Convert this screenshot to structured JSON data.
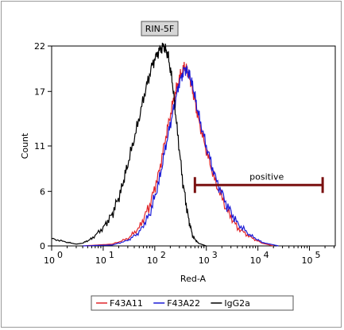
{
  "chart_data": {
    "type": "line",
    "title": "RIN-5F",
    "xlabel": "Red-A",
    "ylabel": "Count",
    "x_scale": "log",
    "xlim": [
      1,
      316228
    ],
    "ylim": [
      0,
      22
    ],
    "x_ticks": [
      {
        "base": "10",
        "exp": "0",
        "value": 1
      },
      {
        "base": "10",
        "exp": "1",
        "value": 10
      },
      {
        "base": "10",
        "exp": "2",
        "value": 100
      },
      {
        "base": "10",
        "exp": "3",
        "value": 1000
      },
      {
        "base": "10",
        "exp": "4",
        "value": 10000
      },
      {
        "base": "10",
        "exp": "5",
        "value": 100000
      }
    ],
    "y_ticks": [
      "0",
      "6",
      "11",
      "17",
      "22"
    ],
    "y_tick_values": [
      0,
      6,
      11,
      17,
      22
    ],
    "series": [
      {
        "name": "F43A11",
        "color": "#e0252a",
        "x": [
          4,
          15,
          30,
          50,
          80,
          120,
          170,
          230,
          300,
          380,
          460,
          550,
          700,
          1000,
          1500,
          2500,
          4000,
          7000,
          12000,
          20000
        ],
        "y": [
          0,
          0.2,
          0.8,
          2,
          4.5,
          8,
          12.5,
          16,
          18.5,
          19.8,
          19,
          17,
          14,
          10.5,
          7,
          4,
          2,
          1,
          0.3,
          0
        ]
      },
      {
        "name": "F43A22",
        "color": "#1a1ad6",
        "x": [
          4,
          15,
          30,
          50,
          80,
          120,
          170,
          230,
          300,
          380,
          460,
          550,
          700,
          1000,
          1500,
          2500,
          4000,
          7000,
          12000,
          25000
        ],
        "y": [
          0,
          0.1,
          0.6,
          1.5,
          3.5,
          7,
          11.5,
          15,
          18,
          19.5,
          19,
          17.5,
          14.5,
          11,
          7.5,
          4.5,
          2.5,
          1.2,
          0.4,
          0
        ]
      },
      {
        "name": "IgG2a",
        "color": "#000000",
        "x": [
          1,
          2,
          3,
          4,
          6,
          10,
          15,
          22,
          30,
          45,
          65,
          90,
          120,
          150,
          180,
          220,
          270,
          350,
          450,
          550,
          700,
          1000
        ],
        "y": [
          0.8,
          0.4,
          0.2,
          0.3,
          0.8,
          2,
          3.5,
          6,
          9,
          13,
          17,
          20,
          21.5,
          22,
          21,
          18,
          13,
          7,
          3,
          1,
          0.3,
          0
        ]
      }
    ],
    "gate": {
      "label": "positive",
      "x_start": 600,
      "x_end": 180000,
      "y": 6.7,
      "color": "#7a1010"
    },
    "legend_position": "bottom"
  }
}
